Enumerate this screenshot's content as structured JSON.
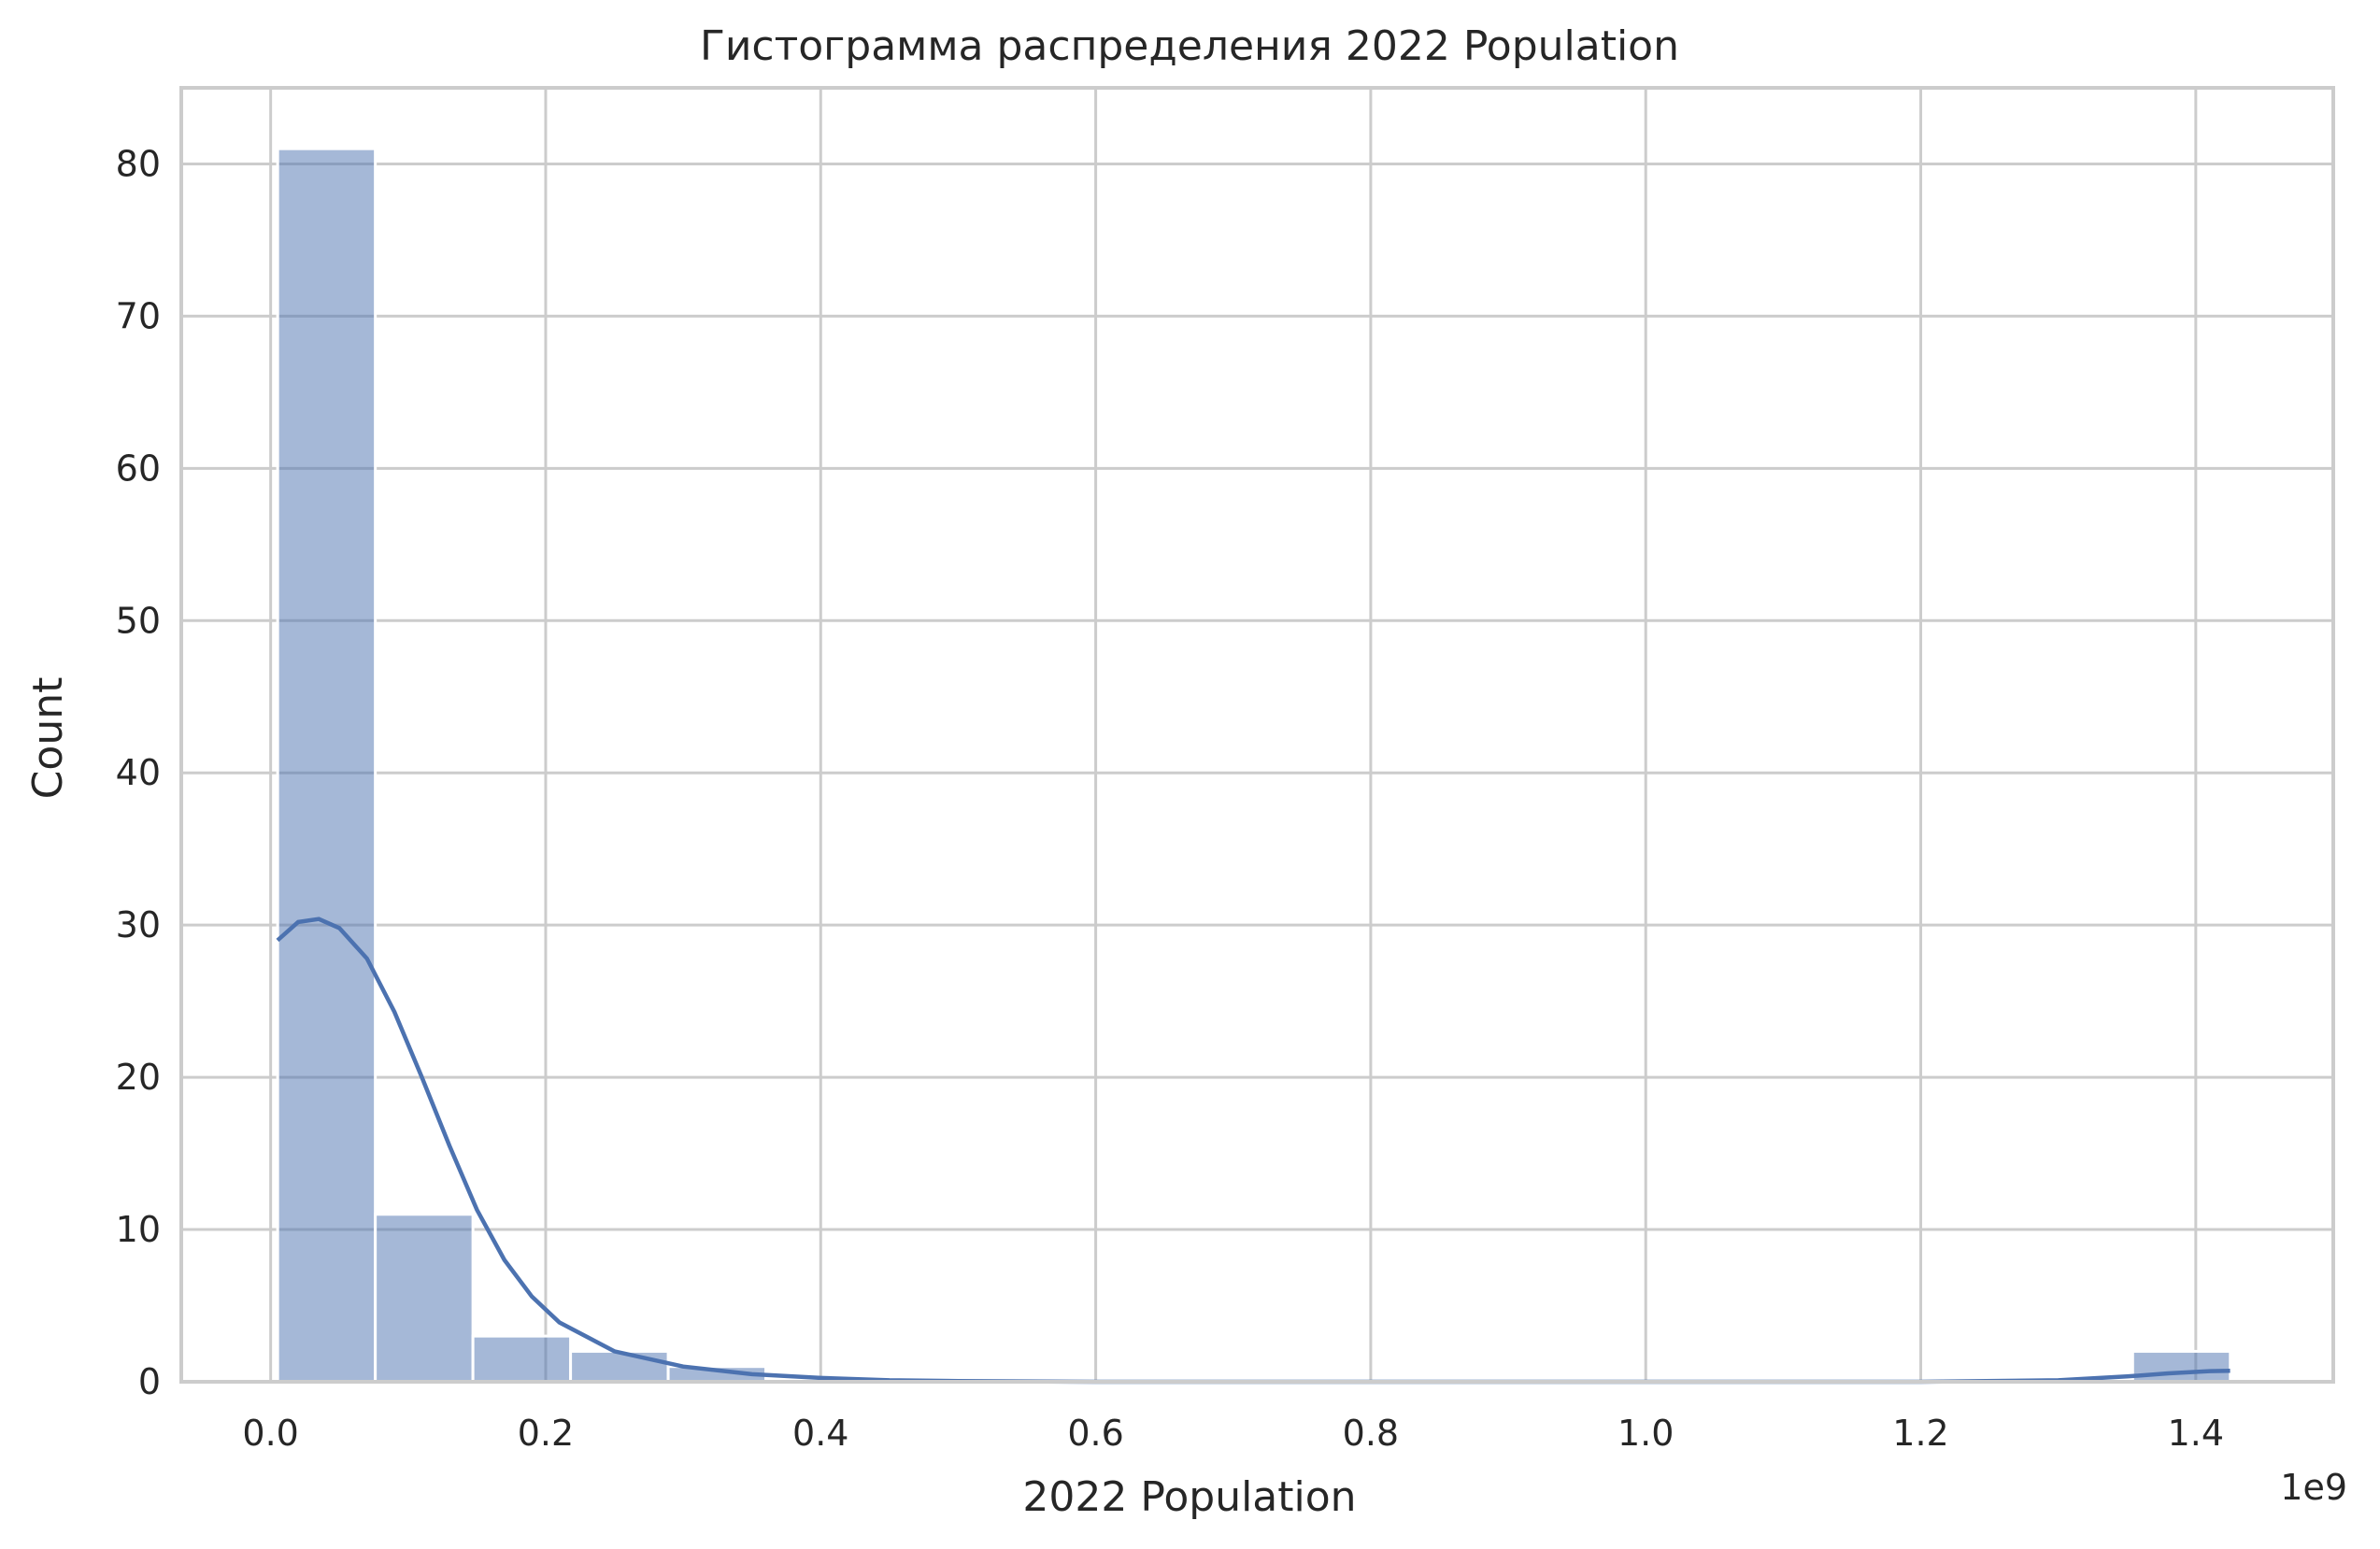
{
  "chart_data": {
    "type": "histogram",
    "title": "Гистограмма распределения 2022 Population",
    "xlabel": "2022 Population",
    "ylabel": "Count",
    "x_offset_label": "1e9",
    "x_scale": 1000000000,
    "xlim": [
      -0.065,
      1.5
    ],
    "ylim": [
      0,
      85
    ],
    "x_ticks": [
      0.0,
      0.2,
      0.4,
      0.6,
      0.8,
      1.0,
      1.2,
      1.4
    ],
    "x_tick_labels": [
      "0.0",
      "0.2",
      "0.4",
      "0.6",
      "0.8",
      "1.0",
      "1.2",
      "1.4"
    ],
    "y_ticks": [
      0,
      10,
      20,
      30,
      40,
      50,
      60,
      70,
      80
    ],
    "y_tick_labels": [
      "0",
      "10",
      "20",
      "30",
      "40",
      "50",
      "60",
      "70",
      "80"
    ],
    "grid": true,
    "bin_width": 0.071,
    "bins": [
      {
        "start": 0.0051,
        "end": 0.0761,
        "count": 81
      },
      {
        "start": 0.0761,
        "end": 0.1471,
        "count": 11
      },
      {
        "start": 0.1471,
        "end": 0.2181,
        "count": 3
      },
      {
        "start": 0.2181,
        "end": 0.2891,
        "count": 2
      },
      {
        "start": 0.2891,
        "end": 0.3601,
        "count": 1
      },
      {
        "start": 1.3541,
        "end": 1.4251,
        "count": 2
      }
    ],
    "kde": {
      "x": [
        0.005,
        0.02,
        0.035,
        0.05,
        0.07,
        0.09,
        0.11,
        0.13,
        0.15,
        0.17,
        0.19,
        0.21,
        0.25,
        0.3,
        0.35,
        0.4,
        0.45,
        0.5,
        0.6,
        0.8,
        1.0,
        1.2,
        1.3,
        1.35,
        1.38,
        1.41,
        1.425
      ],
      "y": [
        29,
        30.2,
        30.4,
        29.8,
        27.8,
        24.3,
        20,
        15.5,
        11.3,
        8,
        5.6,
        3.9,
        2,
        1,
        0.5,
        0.25,
        0.1,
        0.05,
        0,
        0,
        0,
        0,
        0.1,
        0.35,
        0.55,
        0.7,
        0.72
      ]
    },
    "colors": {
      "bar": "#4c72b0",
      "line": "#4c72b0",
      "grid": "#cccccc",
      "text": "#262626"
    }
  }
}
